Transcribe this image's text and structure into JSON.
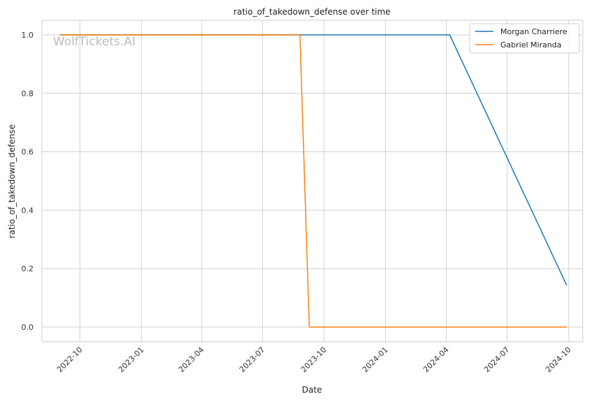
{
  "watermark": "WolfTickets.AI",
  "chart_data": {
    "type": "line",
    "title": "ratio_of_takedown_defense over time",
    "xlabel": "Date",
    "ylabel": "ratio_of_takedown_defense",
    "x_ticks": [
      "2022-10",
      "2023-01",
      "2023-04",
      "2023-07",
      "2023-10",
      "2024-01",
      "2024-04",
      "2024-07",
      "2024-10"
    ],
    "y_ticks": [
      "0.0",
      "0.2",
      "0.4",
      "0.6",
      "0.8",
      "1.0"
    ],
    "ylim": [
      -0.05,
      1.05
    ],
    "xlim": [
      "2022-08-05",
      "2024-10-22"
    ],
    "grid": true,
    "legend_position": "top-right",
    "series": [
      {
        "name": "Morgan Charriere",
        "color": "#1f77b4",
        "points": [
          {
            "x": "2022-09-01",
            "y": 1.0
          },
          {
            "x": "2024-04-06",
            "y": 1.0
          },
          {
            "x": "2024-09-28",
            "y": 0.143
          }
        ]
      },
      {
        "name": "Gabriel Miranda",
        "color": "#ff7f0e",
        "points": [
          {
            "x": "2022-09-01",
            "y": 1.0
          },
          {
            "x": "2023-08-26",
            "y": 1.0
          },
          {
            "x": "2023-09-09",
            "y": 0.0
          },
          {
            "x": "2024-09-28",
            "y": 0.0
          }
        ]
      }
    ]
  }
}
